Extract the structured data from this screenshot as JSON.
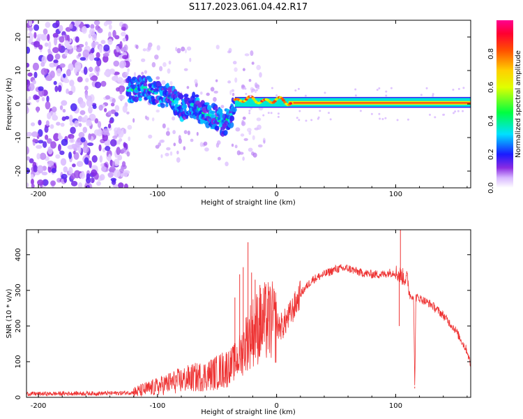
{
  "title": "S117.2023.061.04.42.R17",
  "colors": {
    "snr_line": "#ee3333",
    "axes": "#000000"
  },
  "chart_data": [
    {
      "type": "heatmap",
      "xlabel": "Height of straight line (km)",
      "ylabel": "Frequency (Hz)",
      "xlim": [
        -210,
        163
      ],
      "ylim": [
        -25,
        25
      ],
      "xticks": [
        "-200",
        "-100",
        "0",
        "100"
      ],
      "xtick_values": [
        -200,
        -100,
        0,
        100
      ],
      "yticks": [
        "-20",
        "-10",
        "0",
        "10",
        "20"
      ],
      "ytick_values": [
        -20,
        -10,
        0,
        10,
        20
      ],
      "grid": false,
      "colorbar": {
        "label": "Normalized spectral amplitude",
        "ticks": [
          "0.0",
          "0.2",
          "0.4",
          "0.6",
          "0.8"
        ],
        "tick_values": [
          0.0,
          0.2,
          0.4,
          0.6,
          0.8
        ],
        "range": [
          0,
          1
        ],
        "colormap": "white-purple-blue-cyan-green-yellow-orange-red-magenta"
      },
      "ridge": {
        "x": [
          -125,
          -110,
          -100,
          -90,
          -80,
          -70,
          -60,
          -50,
          -45,
          -42,
          -38,
          -35,
          -30,
          -20,
          -10,
          0,
          10,
          20,
          50,
          100,
          163
        ],
        "freq": [
          4,
          5,
          3,
          2,
          -1,
          0,
          -3,
          -4,
          -6,
          -5,
          -3,
          0,
          1,
          1,
          0,
          1,
          0,
          0,
          0,
          0,
          0
        ]
      },
      "noise_region": {
        "x": [
          -210,
          -125
        ],
        "freq": [
          -25,
          25
        ]
      },
      "stable_region": {
        "x": [
          -35,
          163
        ],
        "freq": [
          0,
          1
        ]
      }
    },
    {
      "type": "line",
      "xlabel": "Height of straight line (km)",
      "ylabel": "SNR (10 * v/v)",
      "xlim": [
        -210,
        163
      ],
      "ylim": [
        0,
        470
      ],
      "xticks": [
        "-200",
        "-100",
        "0",
        "100"
      ],
      "xtick_values": [
        -200,
        -100,
        0,
        100
      ],
      "yticks": [
        "0",
        "100",
        "200",
        "300",
        "400"
      ],
      "ytick_values": [
        0,
        100,
        200,
        300,
        400
      ],
      "grid": false,
      "series": [
        {
          "x": [
            -210,
            -190,
            -170,
            -150,
            -130,
            -120,
            -110,
            -100,
            -90,
            -80,
            -70,
            -60,
            -50,
            -40,
            -35,
            -30,
            -25,
            -20,
            -15,
            -10,
            -5,
            0,
            5,
            10,
            15,
            20,
            30,
            40,
            50,
            60,
            70,
            80,
            90,
            95,
            100,
            105,
            110,
            112,
            115,
            116,
            117,
            118,
            120,
            130,
            140,
            150,
            160,
            163
          ],
          "y": [
            10,
            10,
            11,
            11,
            12,
            14,
            22,
            30,
            40,
            48,
            55,
            60,
            70,
            85,
            100,
            120,
            160,
            185,
            200,
            210,
            215,
            200,
            200,
            225,
            255,
            290,
            330,
            345,
            360,
            362,
            350,
            345,
            345,
            350,
            350,
            340,
            330,
            285,
            285,
            30,
            280,
            280,
            278,
            260,
            230,
            190,
            130,
            90
          ],
          "spikes": [
            {
              "x": -35,
              "y": 280
            },
            {
              "x": -31,
              "y": 345
            },
            {
              "x": -28,
              "y": 365
            },
            {
              "x": -24,
              "y": 435
            },
            {
              "x": -21,
              "y": 350
            },
            {
              "x": -18,
              "y": 330
            },
            {
              "x": -14,
              "y": 315
            },
            {
              "x": -10,
              "y": 300
            },
            {
              "x": -7,
              "y": 310
            },
            {
              "x": 104,
              "y": 470
            },
            {
              "x": 103,
              "y": 200
            },
            {
              "x": 116,
              "y": 25
            }
          ]
        }
      ]
    }
  ]
}
